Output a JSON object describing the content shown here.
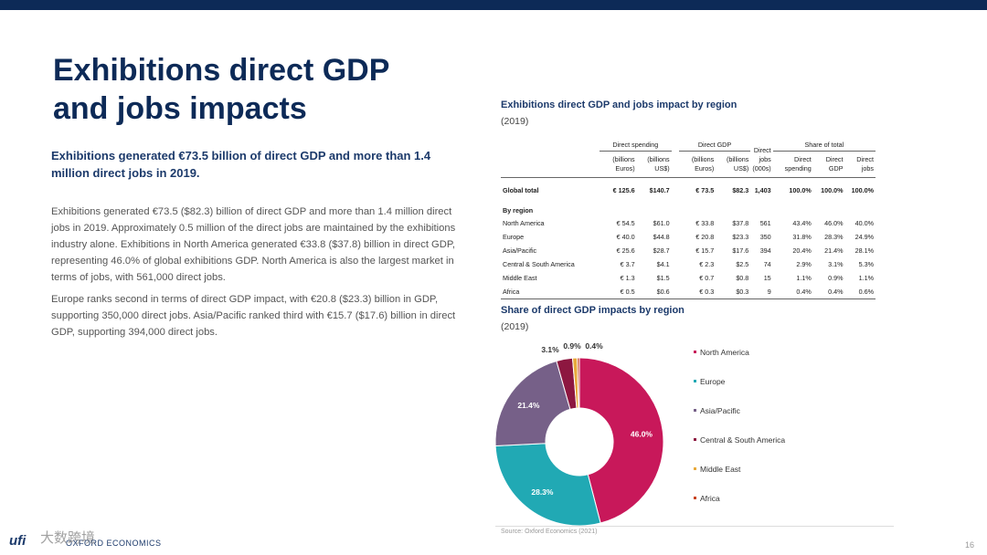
{
  "slide": {
    "title_line1": "Exhibitions direct GDP",
    "title_line2": "and jobs impacts",
    "lead": "Exhibitions generated €73.5 billion of direct GDP and more than 1.4 million direct jobs in 2019.",
    "paragraphs": [
      "Exhibitions generated €73.5 ($82.3) billion of direct GDP and more than 1.4 million direct jobs in 2019. Approximately 0.5 million of the direct jobs are maintained by the exhibitions industry alone. Exhibitions in North America generated €33.8 ($37.8) billion in direct GDP, representing 46.0% of global exhibitions GDP. North America is also the largest market in terms of jobs, with 561,000 direct jobs.",
      "Europe ranks second in terms of direct GDP impact, with €20.8 ($23.3) billion in GDP, supporting 350,000 direct jobs. Asia/Pacific ranked third with €15.7 ($17.6) billion in direct GDP, supporting 394,000 direct jobs."
    ],
    "source": "Source: Oxford Economics (2021)",
    "page_number": "16",
    "footer_ufi": "ufi",
    "footer_oxford": "OXFORD ECONOMICS",
    "watermark": "大数跨境"
  },
  "table": {
    "title": "Exhibitions direct GDP and jobs impact by region",
    "subtitle": "(2019)",
    "group_headers": {
      "spending": "Direct spending",
      "gdp": "Direct GDP",
      "jobs": "Direct jobs (000s)",
      "share": "Share of total"
    },
    "unit_headers": [
      "(billions Euros)",
      "(billions US$)",
      "(billions Euros)",
      "(billions US$)",
      "(000s)",
      "Direct spending",
      "Direct GDP",
      "Direct jobs"
    ],
    "jobs_header_top": "Direct",
    "jobs_header_mid": "jobs",
    "global": [
      "Global total",
      "€ 125.6",
      "$140.7",
      "€ 73.5",
      "$82.3",
      "1,403",
      "100.0%",
      "100.0%",
      "100.0%"
    ],
    "by_region_label": "By region",
    "rows": [
      [
        "North America",
        "€ 54.5",
        "$61.0",
        "€ 33.8",
        "$37.8",
        "561",
        "43.4%",
        "46.0%",
        "40.0%"
      ],
      [
        "Europe",
        "€ 40.0",
        "$44.8",
        "€ 20.8",
        "$23.3",
        "350",
        "31.8%",
        "28.3%",
        "24.9%"
      ],
      [
        "Asia/Pacific",
        "€ 25.6",
        "$28.7",
        "€ 15.7",
        "$17.6",
        "394",
        "20.4%",
        "21.4%",
        "28.1%"
      ],
      [
        "Central & South America",
        "€ 3.7",
        "$4.1",
        "€ 2.3",
        "$2.5",
        "74",
        "2.9%",
        "3.1%",
        "5.3%"
      ],
      [
        "Middle East",
        "€ 1.3",
        "$1.5",
        "€ 0.7",
        "$0.8",
        "15",
        "1.1%",
        "0.9%",
        "1.1%"
      ],
      [
        "Africa",
        "€ 0.5",
        "$0.6",
        "€ 0.3",
        "$0.3",
        "9",
        "0.4%",
        "0.4%",
        "0.6%"
      ]
    ]
  },
  "chart_data": {
    "type": "pie",
    "title": "Share of direct GDP impacts by region",
    "subtitle": "(2019)",
    "donut": true,
    "legend_position": "right",
    "series": [
      {
        "name": "North America",
        "value": 46.0,
        "label": "46.0%",
        "color": "#c8185a"
      },
      {
        "name": "Europe",
        "value": 28.3,
        "label": "28.3%",
        "color": "#21a9b4"
      },
      {
        "name": "Asia/Pacific",
        "value": 21.4,
        "label": "21.4%",
        "color": "#766088"
      },
      {
        "name": "Central & South America",
        "value": 3.1,
        "label": "3.1%",
        "color": "#8d1740"
      },
      {
        "name": "Middle East",
        "value": 0.9,
        "label": "0.9%",
        "color": "#e8a93a"
      },
      {
        "name": "Africa",
        "value": 0.4,
        "label": "0.4%",
        "color": "#c8421e"
      }
    ]
  },
  "colors": {
    "navy": "#0d2a57",
    "heading_blue": "#1c3a6b"
  }
}
